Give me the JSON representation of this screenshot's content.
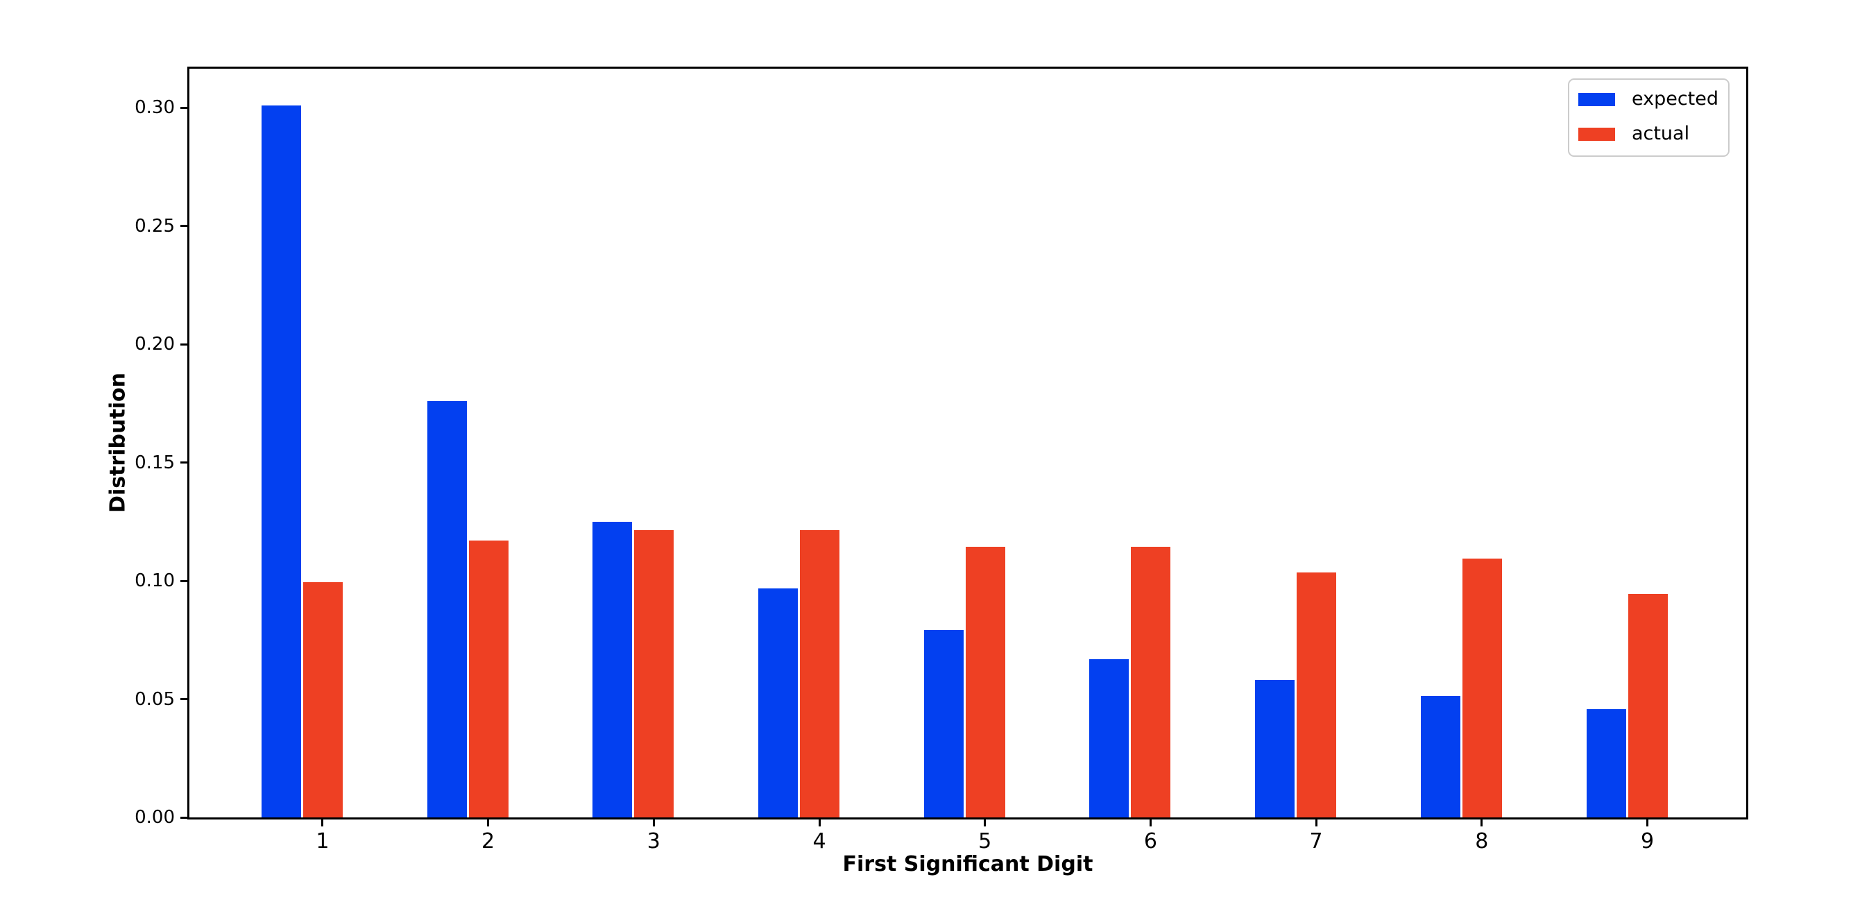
{
  "figure": {
    "background": "#ffffff",
    "axis_color": "#000000",
    "legend_border_color": "#cccccc"
  },
  "chart_data": {
    "type": "bar",
    "title": "",
    "xlabel": "First Significant Digit",
    "ylabel": "Distribution",
    "categories": [
      "1",
      "2",
      "3",
      "4",
      "5",
      "6",
      "7",
      "8",
      "9"
    ],
    "series": [
      {
        "name": "expected",
        "color": "#0340F0",
        "values": [
          0.301,
          0.1761,
          0.1249,
          0.0969,
          0.0792,
          0.0669,
          0.058,
          0.0512,
          0.0458
        ]
      },
      {
        "name": "actual",
        "color": "#EE4023",
        "values": [
          0.0995,
          0.117,
          0.1215,
          0.1215,
          0.1145,
          0.1145,
          0.1035,
          0.1095,
          0.0945
        ]
      }
    ],
    "ylim": [
      0,
      0.3165
    ],
    "yticks": [
      0.0,
      0.05,
      0.1,
      0.15,
      0.2,
      0.25,
      0.3
    ],
    "ytick_labels": [
      "0.00",
      "0.05",
      "0.10",
      "0.15",
      "0.20",
      "0.25",
      "0.30"
    ],
    "grid": false,
    "legend": {
      "position": "upper right",
      "entries": [
        "expected",
        "actual"
      ]
    }
  }
}
